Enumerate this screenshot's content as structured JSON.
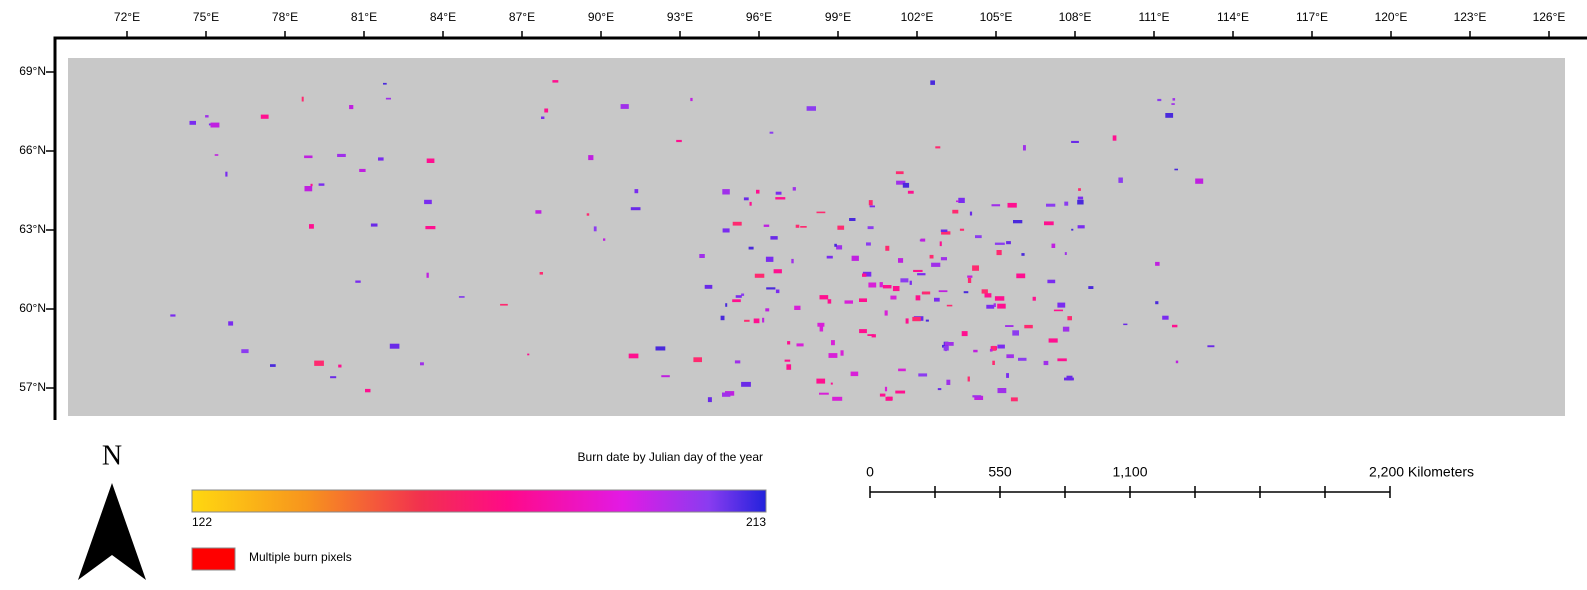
{
  "map": {
    "longitude_labels": [
      "72°E",
      "75°E",
      "78°E",
      "81°E",
      "84°E",
      "87°E",
      "90°E",
      "93°E",
      "96°E",
      "99°E",
      "102°E",
      "105°E",
      "108°E",
      "111°E",
      "114°E",
      "117°E",
      "120°E",
      "123°E",
      "126°E"
    ],
    "latitude_labels": [
      "69°N",
      "66°N",
      "63°N",
      "60°N",
      "57°N"
    ]
  },
  "legend": {
    "title": "Burn date by Julian day of the year",
    "min": 122,
    "max": 213,
    "multiple_label": "Multiple burn pixels"
  },
  "north_arrow": "N",
  "scale_bar": {
    "labels": [
      "0",
      "550",
      "1,100",
      "2,200 Kilometers"
    ]
  }
}
